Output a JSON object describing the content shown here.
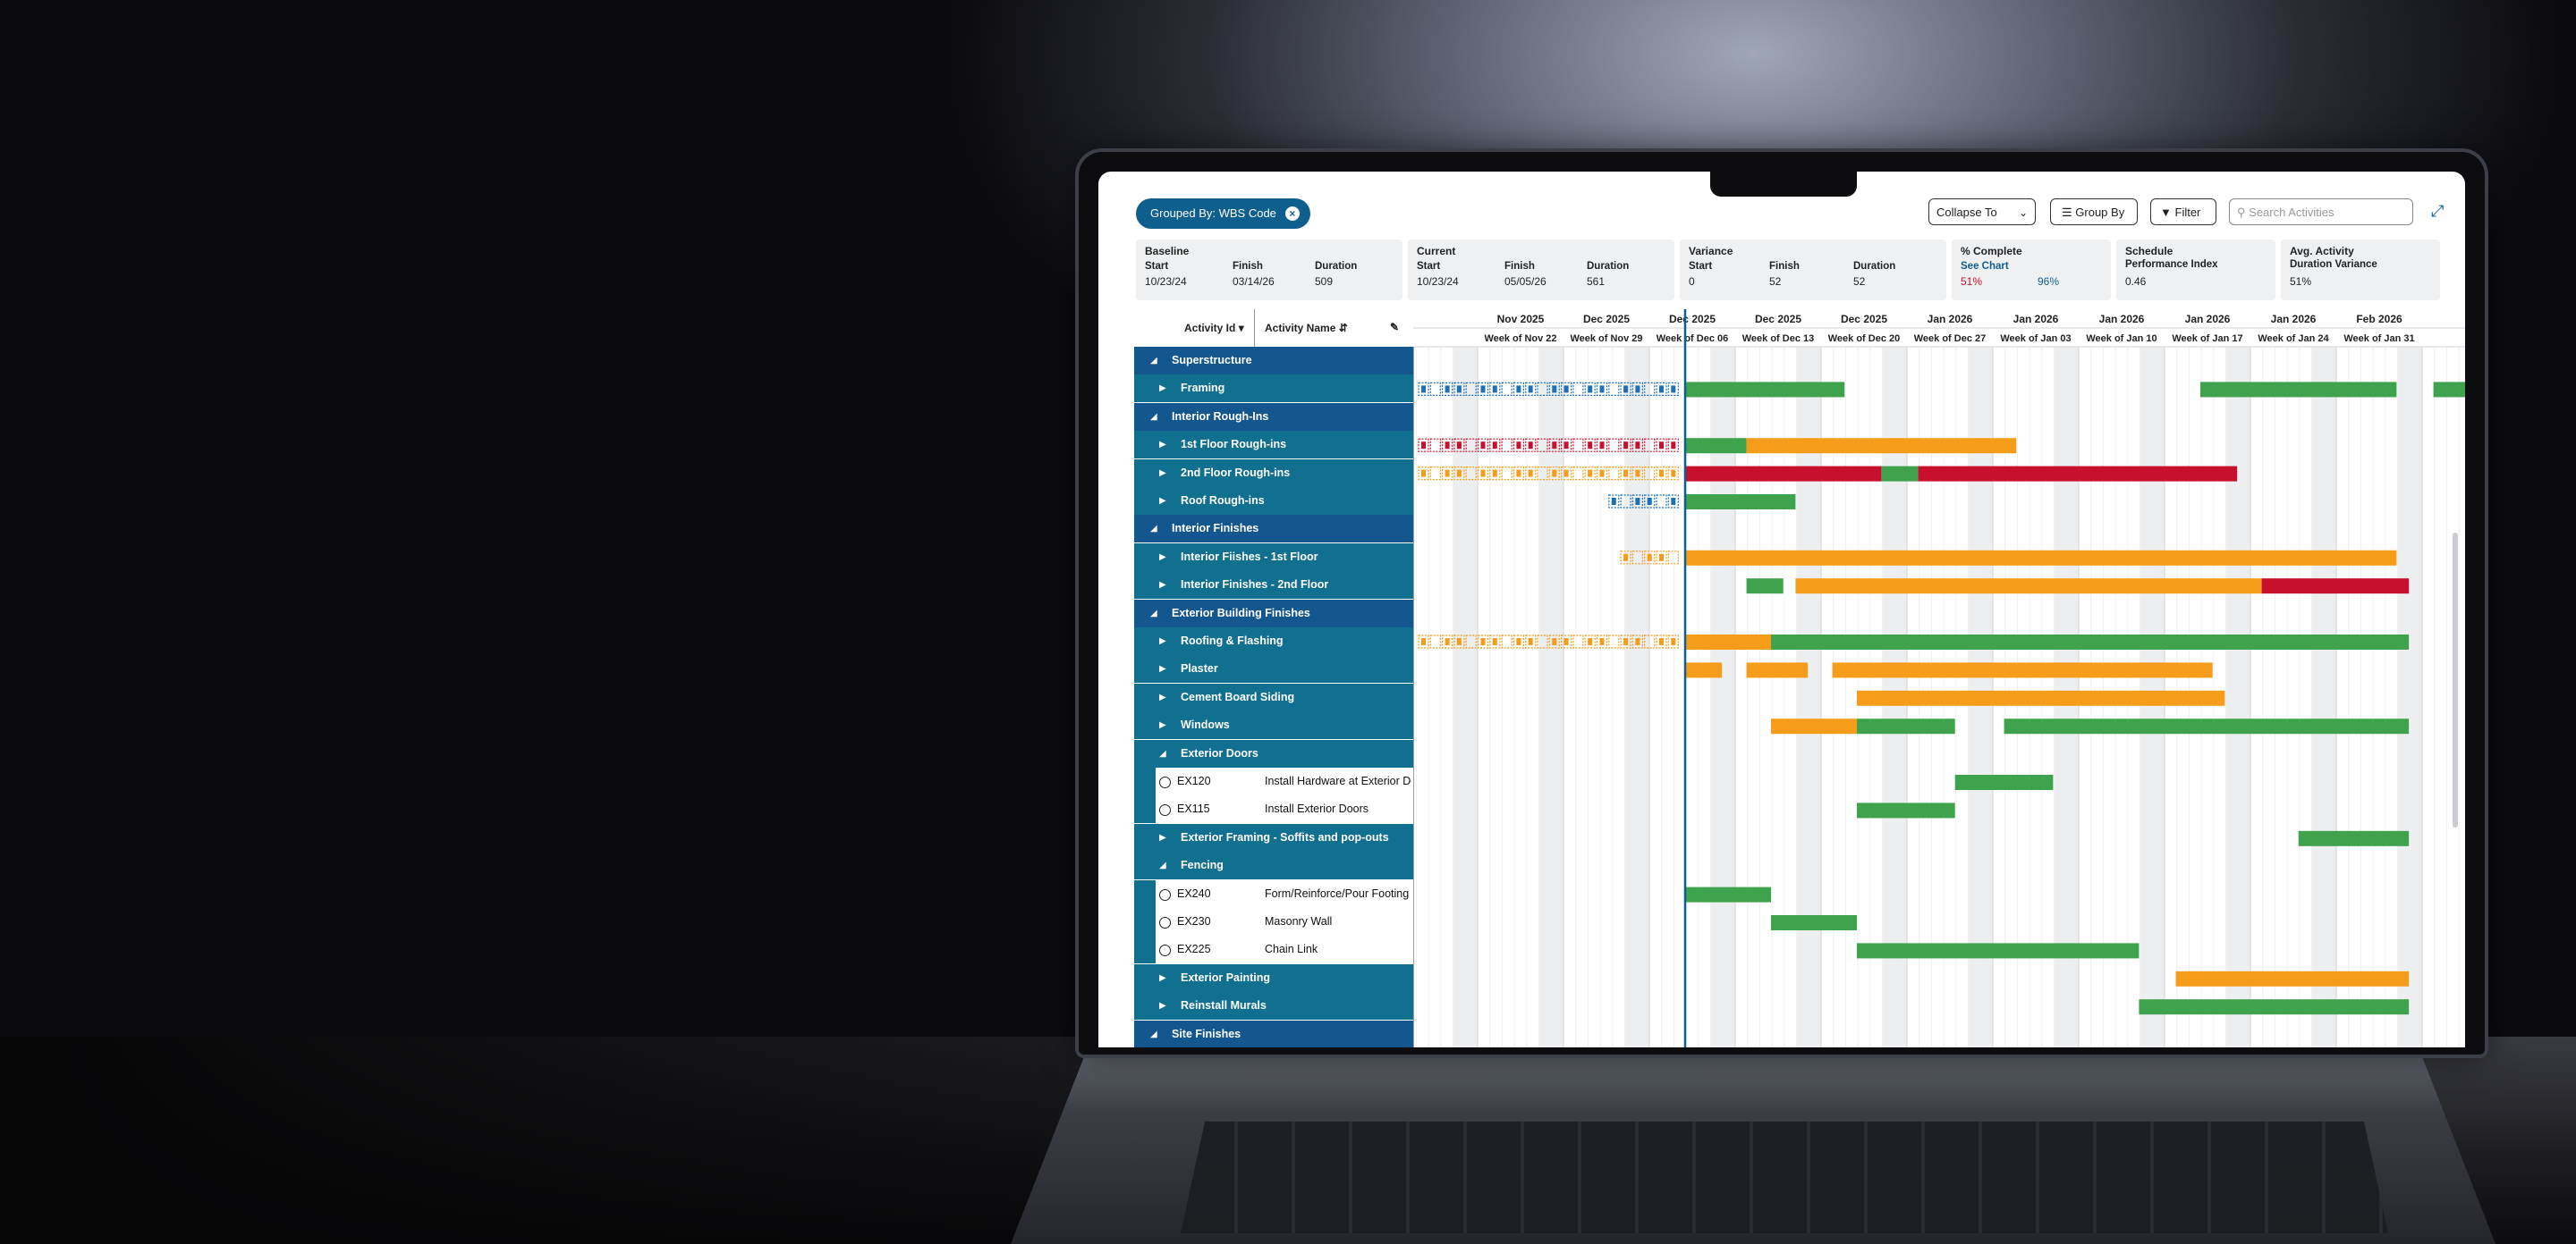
{
  "toolbar": {
    "grouped_chip": "Grouped By: WBS Code",
    "collapse_to": "Collapse To",
    "group_by": "Group By",
    "filter": "Filter",
    "search_placeholder": "Search Activities"
  },
  "summary": {
    "baseline": {
      "title": "Baseline",
      "start_label": "Start",
      "start": "10/23/24",
      "finish_label": "Finish",
      "finish": "03/14/26",
      "duration_label": "Duration",
      "duration": "509"
    },
    "current": {
      "title": "Current",
      "start_label": "Start",
      "start": "10/23/24",
      "finish_label": "Finish",
      "finish": "05/05/26",
      "duration_label": "Duration",
      "duration": "561"
    },
    "variance": {
      "title": "Variance",
      "start_label": "Start",
      "start": "0",
      "finish_label": "Finish",
      "finish": "52",
      "duration_label": "Duration",
      "duration": "52"
    },
    "percent_complete": {
      "title": "% Complete",
      "link": "See Chart",
      "actual": "51%",
      "planned": "96%"
    },
    "spi": {
      "title": "Schedule",
      "subtitle": "Performance Index",
      "value": "0.46"
    },
    "avg_variance": {
      "title": "Avg. Activity",
      "subtitle": "Duration Variance",
      "value": "51%"
    }
  },
  "grid_header": {
    "activity_id": "Activity Id",
    "activity_name": "Activity Name"
  },
  "rows": [
    {
      "type": "grp",
      "label": "Superstructure"
    },
    {
      "type": "sub",
      "label": "Framing"
    },
    {
      "type": "grp",
      "label": "Interior Rough-Ins"
    },
    {
      "type": "sub",
      "label": "1st Floor Rough-ins"
    },
    {
      "type": "sub",
      "label": "2nd Floor Rough-ins"
    },
    {
      "type": "sub",
      "label": "Roof Rough-ins"
    },
    {
      "type": "grp",
      "label": "Interior Finishes"
    },
    {
      "type": "sub",
      "label": "Interior Fiishes - 1st Floor"
    },
    {
      "type": "sub",
      "label": "Interior Finishes - 2nd Floor"
    },
    {
      "type": "grp",
      "label": "Exterior Building Finishes"
    },
    {
      "type": "sub",
      "label": "Roofing & Flashing"
    },
    {
      "type": "sub",
      "label": "Plaster"
    },
    {
      "type": "sub",
      "label": "Cement Board Siding"
    },
    {
      "type": "sub",
      "label": "Windows"
    },
    {
      "type": "subopen",
      "label": "Exterior Doors"
    },
    {
      "type": "act",
      "id": "EX120",
      "label": "Install Hardware at Exterior Doors"
    },
    {
      "type": "act",
      "id": "EX115",
      "label": "Install Exterior Doors"
    },
    {
      "type": "sub",
      "label": "Exterior Framing - Soffits and pop-outs"
    },
    {
      "type": "subopen",
      "label": "Fencing"
    },
    {
      "type": "act",
      "id": "EX240",
      "label": "Form/Reinforce/Pour Footing"
    },
    {
      "type": "act",
      "id": "EX230",
      "label": "Masonry Wall"
    },
    {
      "type": "act",
      "id": "EX225",
      "label": "Chain Link"
    },
    {
      "type": "sub",
      "label": "Exterior Painting"
    },
    {
      "type": "sub",
      "label": "Reinstall Murals"
    },
    {
      "type": "grp",
      "label": "Site Finishes"
    }
  ],
  "timeline": {
    "months": [
      "Nov 2025",
      "Dec 2025",
      "Dec 2025",
      "Dec 2025",
      "Dec 2025",
      "Jan 2026",
      "Jan 2026",
      "Jan 2026",
      "Jan 2026",
      "Jan 2026",
      "Feb 2026"
    ],
    "weeks": [
      "Week of Nov 22",
      "Week of Nov 29",
      "Week of Dec 06",
      "Week of Dec 13",
      "Week of Dec 20",
      "Week of Dec 27",
      "Week of Jan 03",
      "Week of Jan 10",
      "Week of Jan 17",
      "Week of Jan 24",
      "Week of Jan 31"
    ]
  },
  "colors": {
    "green": "#3fa34d",
    "orange": "#f59c1a",
    "red": "#c8102e",
    "blue": "#1f6fb2",
    "group": "#14578f",
    "sub": "#11708f"
  },
  "bars": [
    {
      "row": 1,
      "segments": [
        {
          "c": "green",
          "s": 0,
          "e": 13
        },
        {
          "c": "green",
          "s": 42,
          "e": 58
        },
        {
          "c": "green",
          "s": 61,
          "e": 66
        }
      ]
    },
    {
      "row": 3,
      "segments": [
        {
          "c": "green",
          "s": 0,
          "e": 5
        },
        {
          "c": "orange",
          "s": 5,
          "e": 27
        }
      ]
    },
    {
      "row": 4,
      "segments": [
        {
          "c": "red",
          "s": 0,
          "e": 16
        },
        {
          "c": "green",
          "s": 16,
          "e": 19
        },
        {
          "c": "red",
          "s": 19,
          "e": 45
        }
      ]
    },
    {
      "row": 5,
      "segments": [
        {
          "c": "green",
          "s": 0,
          "e": 9
        }
      ]
    },
    {
      "row": 7,
      "segments": [
        {
          "c": "orange",
          "s": 0,
          "e": 58
        }
      ]
    },
    {
      "row": 8,
      "segments": [
        {
          "c": "green",
          "s": 5,
          "e": 8
        },
        {
          "c": "orange",
          "s": 9,
          "e": 47
        },
        {
          "c": "red",
          "s": 47,
          "e": 59
        }
      ]
    },
    {
      "row": 10,
      "segments": [
        {
          "c": "orange",
          "s": 0,
          "e": 7
        },
        {
          "c": "green",
          "s": 7,
          "e": 59
        }
      ]
    },
    {
      "row": 11,
      "segments": [
        {
          "c": "orange",
          "s": 0,
          "e": 3
        },
        {
          "c": "orange",
          "s": 5,
          "e": 10
        },
        {
          "c": "orange",
          "s": 12,
          "e": 43
        }
      ]
    },
    {
      "row": 12,
      "segments": [
        {
          "c": "orange",
          "s": 14,
          "e": 44
        }
      ]
    },
    {
      "row": 13,
      "segments": [
        {
          "c": "orange",
          "s": 7,
          "e": 14
        },
        {
          "c": "green",
          "s": 14,
          "e": 22
        },
        {
          "c": "green",
          "s": 26,
          "e": 59
        }
      ]
    },
    {
      "row": 15,
      "segments": [
        {
          "c": "green",
          "s": 22,
          "e": 30
        }
      ]
    },
    {
      "row": 16,
      "segments": [
        {
          "c": "green",
          "s": 14,
          "e": 22
        }
      ]
    },
    {
      "row": 17,
      "segments": [
        {
          "c": "green",
          "s": 50,
          "e": 59
        }
      ]
    },
    {
      "row": 19,
      "segments": [
        {
          "c": "green",
          "s": 0,
          "e": 7
        }
      ]
    },
    {
      "row": 20,
      "segments": [
        {
          "c": "green",
          "s": 7,
          "e": 14
        }
      ]
    },
    {
      "row": 21,
      "segments": [
        {
          "c": "green",
          "s": 14,
          "e": 37
        }
      ]
    },
    {
      "row": 22,
      "segments": [
        {
          "c": "orange",
          "s": 40,
          "e": 59
        }
      ]
    },
    {
      "row": 23,
      "segments": [
        {
          "c": "green",
          "s": 37,
          "e": 59
        }
      ]
    }
  ],
  "history": [
    {
      "row": 1,
      "c": "blue",
      "from": 0,
      "to": 22
    },
    {
      "row": 3,
      "c": "red",
      "from": 0,
      "to": 22
    },
    {
      "row": 4,
      "c": "orange",
      "from": 0,
      "to": 22
    },
    {
      "row": 5,
      "c": "blue",
      "from": 16,
      "to": 22
    },
    {
      "row": 7,
      "c": "orange",
      "from": 17,
      "to": 22
    },
    {
      "row": 10,
      "c": "orange",
      "from": 0,
      "to": 22
    }
  ]
}
